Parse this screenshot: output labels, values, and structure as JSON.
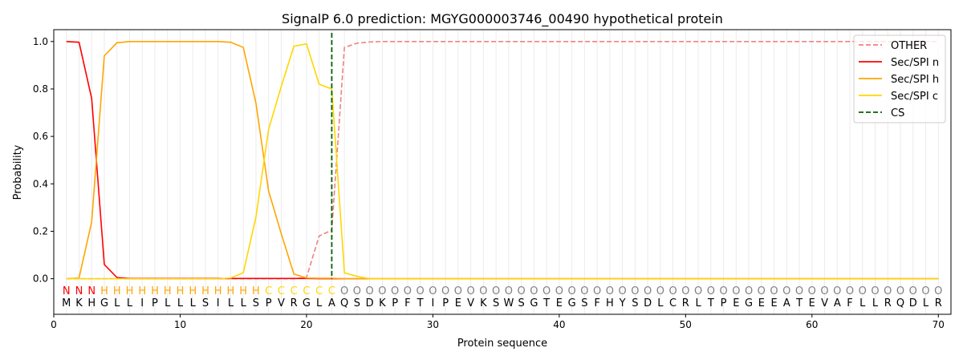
{
  "chart_data": {
    "type": "line",
    "title": "SignalP 6.0 prediction: MGYG000003746_00490 hypothetical protein",
    "xlabel": "Protein sequence",
    "ylabel": "Probability",
    "xlim": [
      0,
      71
    ],
    "ylim": [
      -0.15,
      1.05
    ],
    "xticks": [
      0,
      10,
      20,
      30,
      40,
      50,
      60,
      70
    ],
    "yticks": [
      "0.0",
      "0.2",
      "0.4",
      "0.6",
      "0.8",
      "1.0"
    ],
    "grid": "vertical at each residue",
    "legend_position": "top-right",
    "sequence": "MKHGLLIPLLLSILLSPVRGLAQSDKPFTIPEVKSWSGTEGSFHYSDLCRLTPEGEEATEVAFLLRQDLR",
    "state_labels": "NNNHHHHHHHHHHHHHCCCCCCOOOOOOOOOOOOOOOOOOOOOOOOOOOOOOOOOOOOOOOOOOOOOOOO",
    "state_colors": {
      "N": "#ff0000",
      "H": "#ffa500",
      "C": "#ffd700",
      "O": "#808080"
    },
    "cleavage_site": 22,
    "series": [
      {
        "name": "OTHER",
        "color": "#f08080",
        "dash": true,
        "values": [
          0,
          0,
          0,
          0,
          0,
          0,
          0,
          0,
          0,
          0,
          0,
          0,
          0,
          0,
          0,
          0,
          0,
          0,
          0,
          0.005,
          0.18,
          0.205,
          0.975,
          0.993,
          0.998,
          1,
          1,
          1,
          1,
          1,
          1,
          1,
          1,
          1,
          1,
          1,
          1,
          1,
          1,
          1,
          1,
          1,
          1,
          1,
          1,
          1,
          1,
          1,
          1,
          1,
          1,
          1,
          1,
          1,
          1,
          1,
          1,
          1,
          1,
          1,
          1,
          1,
          1,
          1,
          1,
          1,
          1,
          1,
          1,
          1
        ]
      },
      {
        "name": "Sec/SPI n",
        "color": "#ff0000",
        "dash": false,
        "values": [
          1.0,
          0.997,
          0.76,
          0.06,
          0.005,
          0.001,
          0.001,
          0.001,
          0.001,
          0.001,
          0.001,
          0.001,
          0.001,
          0.001,
          0.001,
          0.001,
          0.001,
          0.001,
          0.001,
          0.001,
          0,
          0,
          0,
          0,
          0,
          0,
          0,
          0,
          0,
          0,
          0,
          0,
          0,
          0,
          0,
          0,
          0,
          0,
          0,
          0,
          0,
          0,
          0,
          0,
          0,
          0,
          0,
          0,
          0,
          0,
          0,
          0,
          0,
          0,
          0,
          0,
          0,
          0,
          0,
          0,
          0,
          0,
          0,
          0,
          0,
          0,
          0,
          0,
          0,
          0
        ]
      },
      {
        "name": "Sec/SPI h",
        "color": "#ffa500",
        "dash": false,
        "values": [
          0,
          0.003,
          0.24,
          0.94,
          0.995,
          1,
          1,
          1,
          1,
          1,
          1,
          1,
          1,
          0.997,
          0.975,
          0.74,
          0.37,
          0.19,
          0.02,
          0.003,
          0.002,
          0.002,
          0,
          0,
          0,
          0,
          0,
          0,
          0,
          0,
          0,
          0,
          0,
          0,
          0,
          0,
          0,
          0,
          0,
          0,
          0,
          0,
          0,
          0,
          0,
          0,
          0,
          0,
          0,
          0,
          0,
          0,
          0,
          0,
          0,
          0,
          0,
          0,
          0,
          0,
          0,
          0,
          0,
          0,
          0,
          0,
          0,
          0,
          0,
          0
        ]
      },
      {
        "name": "Sec/SPI c",
        "color": "#ffd700",
        "dash": false,
        "values": [
          0,
          0,
          0,
          0,
          0,
          0,
          0,
          0,
          0,
          0,
          0,
          0,
          0,
          0.003,
          0.025,
          0.26,
          0.63,
          0.81,
          0.98,
          0.99,
          0.82,
          0.8,
          0.025,
          0.01,
          0,
          0,
          0,
          0,
          0,
          0,
          0,
          0,
          0,
          0,
          0,
          0,
          0,
          0,
          0,
          0,
          0,
          0,
          0,
          0,
          0,
          0,
          0,
          0,
          0,
          0,
          0,
          0,
          0,
          0,
          0,
          0,
          0,
          0,
          0,
          0,
          0,
          0,
          0,
          0,
          0,
          0,
          0,
          0,
          0,
          0
        ]
      },
      {
        "name": "CS",
        "color": "#006400",
        "dash": true,
        "values": []
      }
    ]
  }
}
